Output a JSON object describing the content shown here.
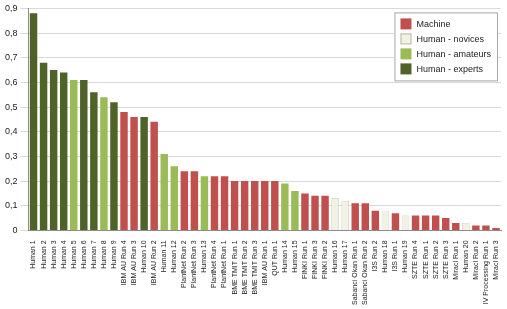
{
  "chart_data": {
    "type": "bar",
    "categories": [
      "Human 1",
      "Human 2",
      "Human 3",
      "Human 4",
      "Human 5",
      "Human 6",
      "Human 7",
      "Human 8",
      "Human 9",
      "IBM AU Run 4",
      "IBM AU Run 3",
      "Human 10",
      "IBM AU Run 2",
      "Human 11",
      "Human 12",
      "PlantNet Run 2",
      "PlantNet Run 3",
      "Human 13",
      "PlantNet Run 4",
      "PlantNet Run 1",
      "BME TMIT Run 1",
      "BME TMIT Run 2",
      "BME TMIT Run 3",
      "IBM AU Run 1",
      "QUT Run 1",
      "Human 14",
      "Human 15",
      "FINKI Run 1",
      "FINKI Run 3",
      "FINKI Run 2",
      "Human 16",
      "Human 17",
      "Sabanci Okan Run 1",
      "Sabanci Okan Run 2",
      "I3S Run 2",
      "Human 18",
      "I3S Run 1",
      "Human 19",
      "SZTE Run 4",
      "SZTE Run 1",
      "SZTE Run 2",
      "SZTE Run 3",
      "Miracl Run 1",
      "Human 20",
      "Miracl Run 2",
      "IV Processing Run 1",
      "Miracl Run 3"
    ],
    "series": [
      {
        "name": "Machine",
        "color": "#c0504d",
        "values": [
          null,
          null,
          null,
          null,
          null,
          null,
          null,
          null,
          null,
          0.48,
          0.46,
          null,
          0.44,
          null,
          null,
          0.24,
          0.24,
          null,
          0.22,
          0.22,
          0.2,
          0.2,
          0.2,
          0.2,
          0.2,
          null,
          null,
          0.15,
          0.14,
          0.14,
          null,
          null,
          0.11,
          0.11,
          0.08,
          null,
          0.07,
          null,
          0.06,
          0.06,
          0.06,
          0.05,
          0.03,
          null,
          0.02,
          0.02,
          0.01
        ]
      },
      {
        "name": "Human - novices",
        "color": "#f2f2e4",
        "values": [
          null,
          null,
          null,
          null,
          null,
          null,
          null,
          null,
          null,
          null,
          null,
          null,
          null,
          null,
          null,
          null,
          null,
          null,
          null,
          null,
          null,
          null,
          null,
          null,
          null,
          null,
          null,
          null,
          null,
          null,
          0.13,
          0.12,
          null,
          null,
          null,
          0.08,
          null,
          0.06,
          null,
          null,
          null,
          null,
          null,
          0.03,
          null,
          null,
          null
        ]
      },
      {
        "name": "Human - amateurs",
        "color": "#9bbb59",
        "values": [
          null,
          null,
          null,
          null,
          0.61,
          null,
          null,
          0.54,
          null,
          null,
          null,
          null,
          null,
          0.31,
          0.26,
          null,
          null,
          0.22,
          null,
          null,
          null,
          null,
          null,
          null,
          null,
          0.19,
          0.16,
          null,
          null,
          null,
          null,
          null,
          null,
          null,
          null,
          null,
          null,
          null,
          null,
          null,
          null,
          null,
          null,
          null,
          null,
          null,
          null
        ]
      },
      {
        "name": "Human - experts",
        "color": "#4f6228",
        "values": [
          0.88,
          0.68,
          0.65,
          0.64,
          null,
          0.61,
          0.56,
          null,
          0.52,
          null,
          null,
          0.46,
          null,
          null,
          null,
          null,
          null,
          null,
          null,
          null,
          null,
          null,
          null,
          null,
          null,
          null,
          null,
          null,
          null,
          null,
          null,
          null,
          null,
          null,
          null,
          null,
          null,
          null,
          null,
          null,
          null,
          null,
          null,
          null,
          null,
          null,
          null
        ]
      }
    ],
    "ylim": [
      0,
      0.9
    ],
    "yticks": [
      {
        "value": 0,
        "label": "0"
      },
      {
        "value": 0.1,
        "label": "0,1"
      },
      {
        "value": 0.2,
        "label": "0,2"
      },
      {
        "value": 0.3,
        "label": "0,3"
      },
      {
        "value": 0.4,
        "label": "0,4"
      },
      {
        "value": 0.5,
        "label": "0,5"
      },
      {
        "value": 0.6,
        "label": "0,6"
      },
      {
        "value": 0.7,
        "label": "0,7"
      },
      {
        "value": 0.8,
        "label": "0,8"
      },
      {
        "value": 0.9,
        "label": "0,9"
      }
    ],
    "grid": true,
    "legend": "top-right"
  }
}
